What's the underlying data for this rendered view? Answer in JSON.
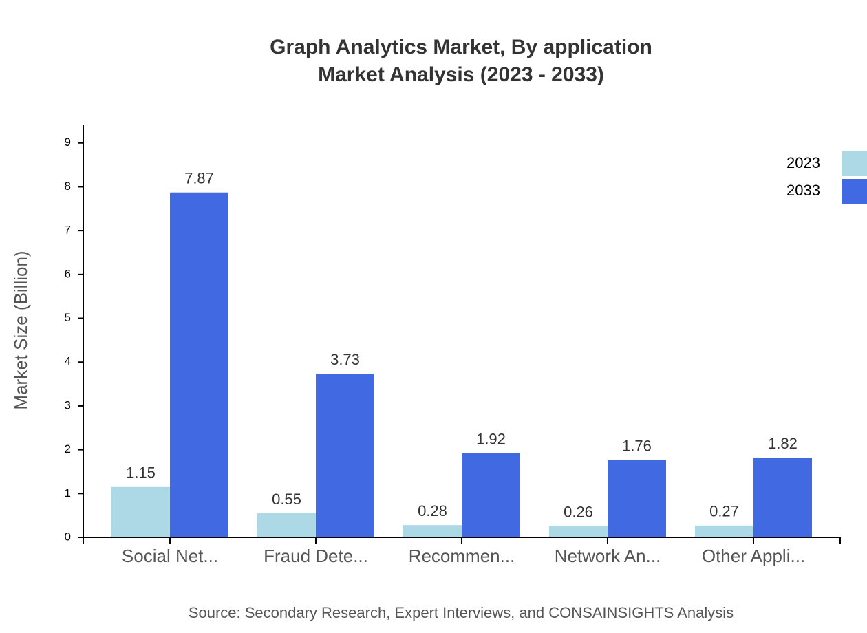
{
  "chart_data": {
    "type": "bar",
    "title": "Graph Analytics Market, By application",
    "subtitle": "Market Analysis (2023 - 2033)",
    "y_label": "Market Size (Billion)",
    "source": "Source: Secondary Research, Expert Interviews, and CONSAINSIGHTS Analysis",
    "categories": [
      "Social Net...",
      "Fraud Dete...",
      "Recommen...",
      "Network An...",
      "Other Appli..."
    ],
    "series": [
      {
        "name": "2023",
        "color": "#add8e6",
        "values": [
          1.15,
          0.55,
          0.28,
          0.26,
          0.27
        ]
      },
      {
        "name": "2033",
        "color": "#4169e1",
        "values": [
          7.87,
          3.73,
          1.92,
          1.76,
          1.82
        ]
      }
    ],
    "ylim": [
      0,
      9.42
    ],
    "yticks": [
      0,
      1,
      2,
      3,
      4,
      5,
      6,
      7,
      8,
      9
    ],
    "legend": "top-right"
  }
}
